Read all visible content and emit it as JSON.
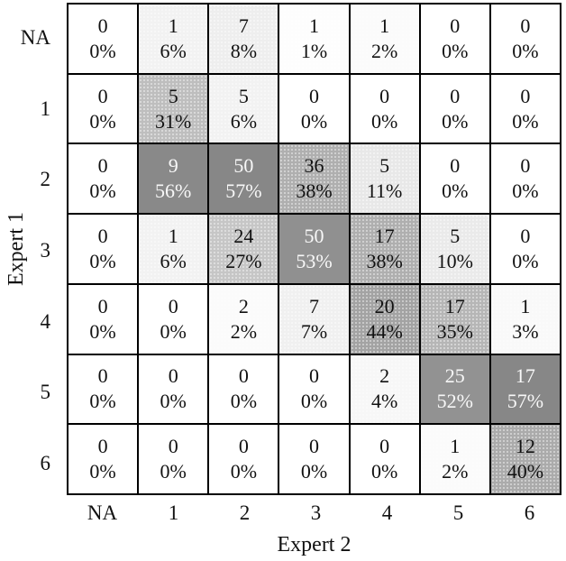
{
  "chart_data": {
    "type": "heatmap",
    "title": "",
    "xlabel": "Expert 2",
    "ylabel": "Expert 1",
    "x_categories": [
      "NA",
      "1",
      "2",
      "3",
      "4",
      "5",
      "6"
    ],
    "y_categories": [
      "NA",
      "1",
      "2",
      "3",
      "4",
      "5",
      "6"
    ],
    "counts": [
      [
        0,
        1,
        7,
        1,
        1,
        0,
        0
      ],
      [
        0,
        5,
        5,
        0,
        0,
        0,
        0
      ],
      [
        0,
        9,
        50,
        36,
        5,
        0,
        0
      ],
      [
        0,
        1,
        24,
        50,
        17,
        5,
        0
      ],
      [
        0,
        0,
        2,
        7,
        20,
        17,
        1
      ],
      [
        0,
        0,
        0,
        0,
        2,
        25,
        17
      ],
      [
        0,
        0,
        0,
        0,
        0,
        1,
        12
      ]
    ],
    "percents": [
      [
        0,
        6,
        8,
        1,
        2,
        0,
        0
      ],
      [
        0,
        31,
        6,
        0,
        0,
        0,
        0
      ],
      [
        0,
        56,
        57,
        38,
        11,
        0,
        0
      ],
      [
        0,
        6,
        27,
        53,
        38,
        10,
        0
      ],
      [
        0,
        0,
        2,
        7,
        44,
        35,
        3
      ],
      [
        0,
        0,
        0,
        0,
        4,
        52,
        57
      ],
      [
        0,
        0,
        0,
        0,
        0,
        2,
        40
      ]
    ],
    "percent_suffix": "%",
    "style": {
      "border_color": "#000000",
      "background_color": "#ffffff",
      "text_dark": "#111111",
      "text_light": "#f8f8f8",
      "light_text_threshold_pct": 50,
      "max_shade_color": "#868686"
    }
  }
}
